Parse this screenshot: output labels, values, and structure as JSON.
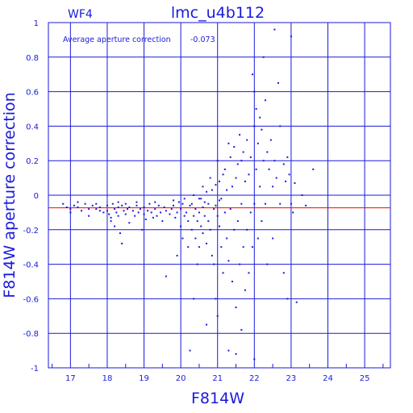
{
  "chart_data": {
    "type": "scatter",
    "title": "lmc_u4b112",
    "subtitle": "WF4",
    "xlabel": "F814W",
    "ylabel": "F814W aperture correction",
    "xlim": [
      16.4,
      25.7
    ],
    "ylim": [
      -1,
      1
    ],
    "xticks": [
      17,
      18,
      19,
      20,
      21,
      22,
      23,
      24,
      25
    ],
    "yticks": [
      -1,
      -0.8,
      -0.6,
      -0.4,
      -0.2,
      0,
      0.2,
      0.4,
      0.6,
      0.8,
      1
    ],
    "grid": true,
    "annotation": {
      "label": "Average aperture correction",
      "value": "-0.073"
    },
    "reference_line": {
      "y": -0.073,
      "color": "#ff0000"
    },
    "marker_color": "#1a1adb",
    "axis_color": "#1a1adb",
    "points": [
      [
        16.8,
        -0.05
      ],
      [
        16.9,
        -0.07
      ],
      [
        17.0,
        -0.08
      ],
      [
        17.0,
        -0.1
      ],
      [
        17.1,
        -0.06
      ],
      [
        17.2,
        -0.07
      ],
      [
        17.3,
        -0.09
      ],
      [
        17.4,
        -0.05
      ],
      [
        17.5,
        -0.08
      ],
      [
        17.5,
        -0.12
      ],
      [
        17.6,
        -0.06
      ],
      [
        17.7,
        -0.08
      ],
      [
        17.8,
        -0.07
      ],
      [
        17.8,
        -0.09
      ],
      [
        17.9,
        -0.1
      ],
      [
        18.0,
        -0.06
      ],
      [
        18.0,
        -0.09
      ],
      [
        18.05,
        -0.11
      ],
      [
        18.1,
        -0.13
      ],
      [
        18.1,
        -0.15
      ],
      [
        18.15,
        -0.05
      ],
      [
        18.2,
        -0.08
      ],
      [
        18.2,
        -0.18
      ],
      [
        18.25,
        -0.1
      ],
      [
        18.3,
        -0.07
      ],
      [
        18.3,
        -0.12
      ],
      [
        18.35,
        -0.22
      ],
      [
        18.4,
        -0.06
      ],
      [
        18.4,
        -0.28
      ],
      [
        18.45,
        -0.09
      ],
      [
        18.5,
        -0.05
      ],
      [
        18.5,
        -0.11
      ],
      [
        18.55,
        -0.08
      ],
      [
        18.6,
        -0.07
      ],
      [
        18.6,
        -0.16
      ],
      [
        18.7,
        -0.09
      ],
      [
        18.75,
        -0.12
      ],
      [
        18.8,
        -0.06
      ],
      [
        18.85,
        -0.1
      ],
      [
        18.9,
        -0.08
      ],
      [
        18.95,
        -0.2
      ],
      [
        19.0,
        -0.07
      ],
      [
        19.0,
        -0.11
      ],
      [
        19.05,
        -0.14
      ],
      [
        19.1,
        -0.09
      ],
      [
        19.15,
        -0.05
      ],
      [
        19.2,
        -0.1
      ],
      [
        19.25,
        -0.13
      ],
      [
        19.3,
        -0.08
      ],
      [
        19.35,
        -0.12
      ],
      [
        19.4,
        -0.06
      ],
      [
        19.45,
        -0.1
      ],
      [
        19.5,
        -0.15
      ],
      [
        19.55,
        -0.07
      ],
      [
        19.6,
        -0.09
      ],
      [
        19.6,
        -0.47
      ],
      [
        19.7,
        -0.11
      ],
      [
        19.75,
        -0.08
      ],
      [
        19.8,
        -0.06
      ],
      [
        19.85,
        -0.13
      ],
      [
        19.9,
        -0.1
      ],
      [
        19.9,
        -0.35
      ],
      [
        19.95,
        -0.04
      ],
      [
        20.0,
        -0.08
      ],
      [
        20.0,
        -0.18
      ],
      [
        20.05,
        -0.05
      ],
      [
        20.05,
        -0.25
      ],
      [
        20.1,
        -0.12
      ],
      [
        20.1,
        -0.02
      ],
      [
        20.15,
        -0.1
      ],
      [
        20.2,
        -0.15
      ],
      [
        20.2,
        -0.3
      ],
      [
        20.25,
        -0.06
      ],
      [
        20.3,
        -0.2
      ],
      [
        20.3,
        -0.05
      ],
      [
        20.35,
        -0.12
      ],
      [
        20.35,
        0.0
      ],
      [
        20.4,
        -0.08
      ],
      [
        20.4,
        -0.25
      ],
      [
        20.45,
        -0.15
      ],
      [
        20.45,
        -0.4
      ],
      [
        20.5,
        -0.02
      ],
      [
        20.5,
        -0.1
      ],
      [
        20.5,
        -0.3
      ],
      [
        20.55,
        -0.18
      ],
      [
        20.6,
        0.05
      ],
      [
        20.6,
        -0.07
      ],
      [
        20.6,
        -0.22
      ],
      [
        20.65,
        -0.12
      ],
      [
        20.7,
        0.02
      ],
      [
        20.7,
        -0.28
      ],
      [
        20.75,
        -0.05
      ],
      [
        20.75,
        -0.15
      ],
      [
        20.8,
        0.1
      ],
      [
        20.8,
        -0.2
      ],
      [
        20.85,
        -0.35
      ],
      [
        20.85,
        0.03
      ],
      [
        20.9,
        -0.08
      ],
      [
        20.9,
        -0.4
      ],
      [
        20.95,
        0.06
      ],
      [
        20.95,
        -0.6
      ],
      [
        21.0,
        -0.12
      ],
      [
        21.0,
        0.2
      ],
      [
        21.0,
        -0.7
      ],
      [
        21.05,
        -0.18
      ],
      [
        21.05,
        0.08
      ],
      [
        21.1,
        -0.02
      ],
      [
        21.1,
        -0.3
      ],
      [
        21.15,
        0.12
      ],
      [
        21.15,
        -0.45
      ],
      [
        21.2,
        -0.1
      ],
      [
        21.2,
        0.15
      ],
      [
        21.25,
        -0.25
      ],
      [
        21.25,
        0.03
      ],
      [
        21.3,
        -0.38
      ],
      [
        21.3,
        0.3
      ],
      [
        21.35,
        -0.08
      ],
      [
        21.35,
        0.22
      ],
      [
        21.4,
        -0.5
      ],
      [
        21.4,
        0.05
      ],
      [
        21.45,
        -0.2
      ],
      [
        21.45,
        0.28
      ],
      [
        21.5,
        -0.65
      ],
      [
        21.5,
        0.1
      ],
      [
        21.55,
        -0.15
      ],
      [
        21.55,
        0.18
      ],
      [
        21.6,
        -0.4
      ],
      [
        21.6,
        0.35
      ],
      [
        21.65,
        -0.05
      ],
      [
        21.65,
        0.2
      ],
      [
        21.7,
        -0.3
      ],
      [
        21.7,
        0.25
      ],
      [
        21.75,
        -0.55
      ],
      [
        21.75,
        0.08
      ],
      [
        21.8,
        -0.2
      ],
      [
        21.8,
        0.32
      ],
      [
        21.85,
        0.12
      ],
      [
        21.85,
        -0.45
      ],
      [
        21.9,
        0.22
      ],
      [
        21.9,
        -0.1
      ],
      [
        21.95,
        0.7
      ],
      [
        21.95,
        -0.3
      ],
      [
        22.0,
        0.6
      ],
      [
        22.0,
        0.4
      ],
      [
        22.0,
        -0.05
      ],
      [
        22.0,
        -0.95
      ],
      [
        22.05,
        0.5
      ],
      [
        22.05,
        0.15
      ],
      [
        22.1,
        0.3
      ],
      [
        22.1,
        -0.25
      ],
      [
        22.15,
        0.45
      ],
      [
        22.15,
        0.05
      ],
      [
        22.2,
        0.38
      ],
      [
        22.2,
        -0.15
      ],
      [
        22.25,
        0.8
      ],
      [
        22.25,
        0.2
      ],
      [
        22.3,
        0.55
      ],
      [
        22.3,
        -0.05
      ],
      [
        22.35,
        0.25
      ],
      [
        22.35,
        -0.4
      ],
      [
        22.4,
        0.15
      ],
      [
        22.45,
        0.32
      ],
      [
        22.5,
        0.05
      ],
      [
        22.5,
        -0.25
      ],
      [
        22.55,
        0.96
      ],
      [
        22.55,
        0.2
      ],
      [
        22.6,
        0.1
      ],
      [
        22.65,
        0.65
      ],
      [
        22.7,
        0.4
      ],
      [
        22.7,
        -0.05
      ],
      [
        22.8,
        0.18
      ],
      [
        22.8,
        -0.45
      ],
      [
        22.85,
        0.08
      ],
      [
        22.9,
        0.22
      ],
      [
        22.9,
        -0.6
      ],
      [
        22.95,
        0.12
      ],
      [
        23.0,
        0.92
      ],
      [
        23.0,
        -0.05
      ],
      [
        23.05,
        -0.1
      ],
      [
        23.1,
        0.07
      ],
      [
        23.15,
        -0.62
      ],
      [
        23.3,
        0.0
      ],
      [
        23.4,
        -0.06
      ],
      [
        23.6,
        0.15
      ],
      [
        17.2,
        -0.04
      ],
      [
        17.7,
        -0.05
      ],
      [
        18.3,
        -0.04
      ],
      [
        18.8,
        -0.04
      ],
      [
        19.3,
        -0.04
      ],
      [
        19.8,
        -0.03
      ],
      [
        20.25,
        -0.9
      ],
      [
        20.35,
        -0.6
      ],
      [
        20.7,
        -0.75
      ],
      [
        21.3,
        -0.9
      ],
      [
        21.5,
        -0.92
      ],
      [
        21.65,
        -0.78
      ],
      [
        20.55,
        -0.02
      ],
      [
        20.65,
        -0.04
      ],
      [
        20.95,
        -0.06
      ],
      [
        21.05,
        -0.03
      ]
    ]
  }
}
